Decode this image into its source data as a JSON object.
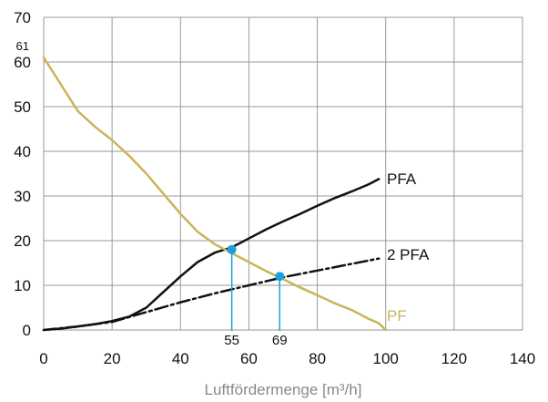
{
  "chart_data": {
    "type": "line",
    "title": "",
    "xlabel": "Luftfördermenge [m³/h]",
    "ylabel": "",
    "xlim": [
      0,
      140
    ],
    "ylim": [
      0,
      70
    ],
    "x_ticks": [
      "0",
      "20",
      "40",
      "60",
      "80",
      "100",
      "120",
      "140"
    ],
    "y_ticks": [
      "0",
      "10",
      "20",
      "30",
      "40",
      "50",
      "60",
      "70"
    ],
    "y_extra_tick": "61",
    "grid": true,
    "series": [
      {
        "name": "PFA",
        "color": "#111111",
        "style": "solid",
        "x": [
          0,
          5,
          10,
          15,
          20,
          25,
          30,
          35,
          40,
          45,
          50,
          55,
          60,
          65,
          70,
          75,
          80,
          85,
          90,
          95,
          98
        ],
        "y": [
          0,
          0.3,
          0.8,
          1.3,
          2.0,
          3.0,
          5.0,
          8.5,
          12.0,
          15.2,
          17.3,
          18.5,
          20.5,
          22.5,
          24.3,
          26.0,
          27.8,
          29.5,
          31.0,
          32.6,
          33.8
        ]
      },
      {
        "name": "2 PFA",
        "color": "#111111",
        "style": "dashdot",
        "x": [
          0,
          10,
          20,
          30,
          40,
          50,
          60,
          70,
          80,
          90,
          98
        ],
        "y": [
          0,
          0.8,
          1.8,
          4.0,
          6.2,
          8.2,
          10.0,
          11.8,
          13.3,
          14.8,
          16.0
        ]
      },
      {
        "name": "PF",
        "color": "#c9b45a",
        "style": "solid",
        "x": [
          0,
          5,
          10,
          15,
          20,
          25,
          30,
          35,
          40,
          45,
          50,
          55,
          60,
          65,
          70,
          75,
          80,
          85,
          90,
          95,
          98,
          100
        ],
        "y": [
          61,
          55,
          49,
          45.5,
          42.5,
          39,
          35,
          30.5,
          26,
          22,
          19.2,
          17.2,
          15.2,
          13.2,
          11.4,
          9.5,
          7.8,
          6.0,
          4.5,
          2.5,
          1.5,
          0
        ]
      }
    ],
    "markers": [
      {
        "label": "55",
        "x": 55,
        "y": 18,
        "color": "#1a9fe0"
      },
      {
        "label": "69",
        "x": 69,
        "y": 12,
        "color": "#1a9fe0"
      }
    ]
  }
}
